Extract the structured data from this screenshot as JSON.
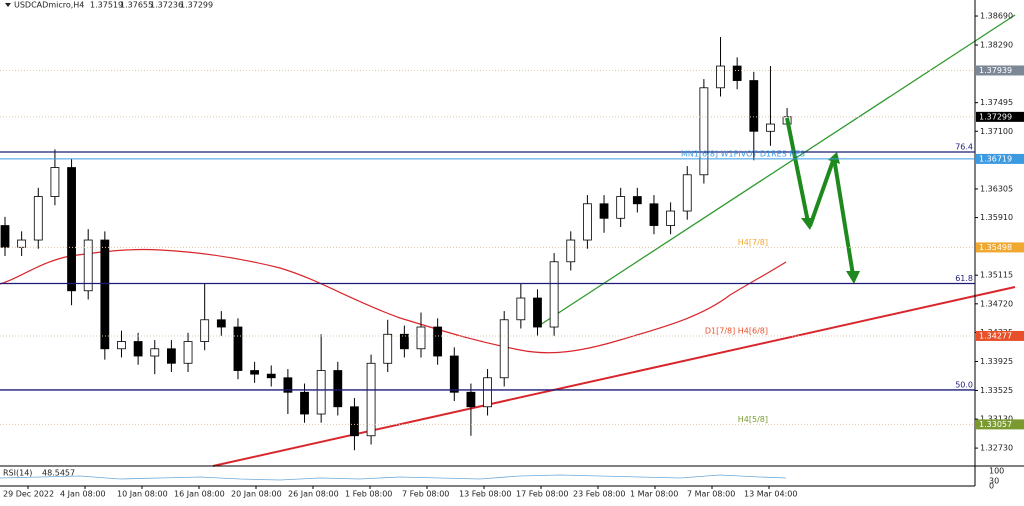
{
  "chart_data": {
    "type": "candlestick",
    "symbol": "USDCADmicro,H4",
    "header_values": [
      "1.37519",
      "1.37655",
      "1.37236",
      "1.37299"
    ],
    "open": [
      1.358,
      1.355,
      1.356,
      1.362,
      1.366,
      1.349,
      1.356,
      1.341,
      1.342,
      1.34,
      1.341,
      1.339,
      1.342,
      1.345,
      1.344,
      1.338,
      1.3375,
      1.337,
      1.335,
      1.332,
      1.338,
      1.333,
      1.329,
      1.339,
      1.343,
      1.341,
      1.344,
      1.34,
      1.335,
      1.333,
      1.337,
      1.345,
      1.348,
      1.344,
      1.353,
      1.356,
      1.361,
      1.359,
      1.362,
      1.361,
      1.358,
      1.36,
      1.365,
      1.377,
      1.38,
      1.378,
      1.371,
      1.372
    ],
    "high": [
      1.3592,
      1.3572,
      1.3632,
      1.3685,
      1.3672,
      1.3575,
      1.3572,
      1.3435,
      1.3432,
      1.3422,
      1.3422,
      1.3432,
      1.35,
      1.3462,
      1.3452,
      1.3392,
      1.3387,
      1.3382,
      1.3362,
      1.343,
      1.3392,
      1.3342,
      1.3402,
      1.345,
      1.3442,
      1.346,
      1.3452,
      1.3412,
      1.3362,
      1.3382,
      1.3462,
      1.35,
      1.3492,
      1.3542,
      1.3572,
      1.3622,
      1.3622,
      1.3632,
      1.3632,
      1.3622,
      1.3612,
      1.3662,
      1.3782,
      1.384,
      1.3812,
      1.3792,
      1.38,
      1.3742
    ],
    "low": [
      1.3538,
      1.3538,
      1.3548,
      1.3608,
      1.347,
      1.3478,
      1.3395,
      1.3398,
      1.3388,
      1.3375,
      1.3378,
      1.3378,
      1.3408,
      1.3428,
      1.3368,
      1.3363,
      1.3358,
      1.332,
      1.3308,
      1.3308,
      1.3318,
      1.327,
      1.3278,
      1.3378,
      1.3398,
      1.3398,
      1.3388,
      1.3338,
      1.329,
      1.3318,
      1.3358,
      1.3438,
      1.3428,
      1.3428,
      1.3518,
      1.3548,
      1.357,
      1.3578,
      1.3598,
      1.3568,
      1.3568,
      1.3588,
      1.3638,
      1.3758,
      1.3768,
      1.367,
      1.369,
      1.3718
    ],
    "close": [
      1.355,
      1.356,
      1.362,
      1.366,
      1.349,
      1.356,
      1.341,
      1.342,
      1.34,
      1.341,
      1.339,
      1.342,
      1.345,
      1.344,
      1.338,
      1.3375,
      1.337,
      1.335,
      1.332,
      1.338,
      1.333,
      1.329,
      1.339,
      1.343,
      1.341,
      1.344,
      1.34,
      1.335,
      1.333,
      1.337,
      1.345,
      1.348,
      1.344,
      1.353,
      1.356,
      1.361,
      1.359,
      1.362,
      1.361,
      1.358,
      1.36,
      1.365,
      1.377,
      1.38,
      1.378,
      1.371,
      1.372,
      1.373
    ],
    "ylim": [
      1.32483,
      1.38911
    ],
    "yticks": [
      {
        "value": 1.3869,
        "label": "1.38690"
      },
      {
        "value": 1.3829,
        "label": "1.38290"
      },
      1.37495,
      {
        "value": 1.371,
        "label": "1.37100"
      },
      1.36305,
      {
        "value": 1.3591,
        "label": "1.35910"
      },
      1.35115,
      {
        "value": 1.3472,
        "label": "1.34720"
      },
      1.34325,
      1.33925,
      1.33525,
      {
        "value": 1.3313,
        "label": "1.33130"
      },
      {
        "value": 1.3273,
        "label": "1.32730"
      }
    ],
    "xlabels": [
      "29 Dec 2022",
      "4 Jan 08:00",
      "10 Jan 08:00",
      "16 Jan 08:00",
      "20 Jan 08:00",
      "26 Jan 08:00",
      "1 Feb 08:00",
      "7 Feb 08:00",
      "13 Feb 08:00",
      "17 Feb 08:00",
      "23 Feb 08:00",
      "1 Mar 08:00",
      "7 Mar 08:00",
      "13 Mar 04:00"
    ],
    "levels": [
      {
        "value": 1.36814,
        "label": "76.4",
        "color": "#1c1c78"
      },
      {
        "value": 1.35,
        "label": "61.8",
        "color": "#1c1c78"
      },
      {
        "value": 1.33532,
        "label": "50.0",
        "color": "#1c1c78"
      }
    ],
    "price_tags": [
      {
        "value": 1.37939,
        "color": "#7d8896",
        "line": "dotted"
      },
      {
        "value": 1.37299,
        "color": "#000000",
        "line": "dotted"
      },
      {
        "value": 1.36719,
        "color": "#3c9ae0",
        "line": "solid",
        "text": "MN1[6/8] W1PIVOT D1RES RES"
      },
      {
        "value": 1.35498,
        "color": "#f0a830",
        "line": "dotted",
        "text": "H4[7/8]"
      },
      {
        "value": 1.34277,
        "color": "#e8502a",
        "line": "dotted",
        "text": "D1[7/8] H4[6/8]"
      },
      {
        "value": 1.33057,
        "color": "#7a9a30",
        "line": "dotted",
        "text": "H4[5/8]"
      }
    ],
    "rsi": {
      "label": "RSI(14)",
      "value": 48.5457,
      "levels": [
        100,
        30,
        0
      ]
    }
  }
}
